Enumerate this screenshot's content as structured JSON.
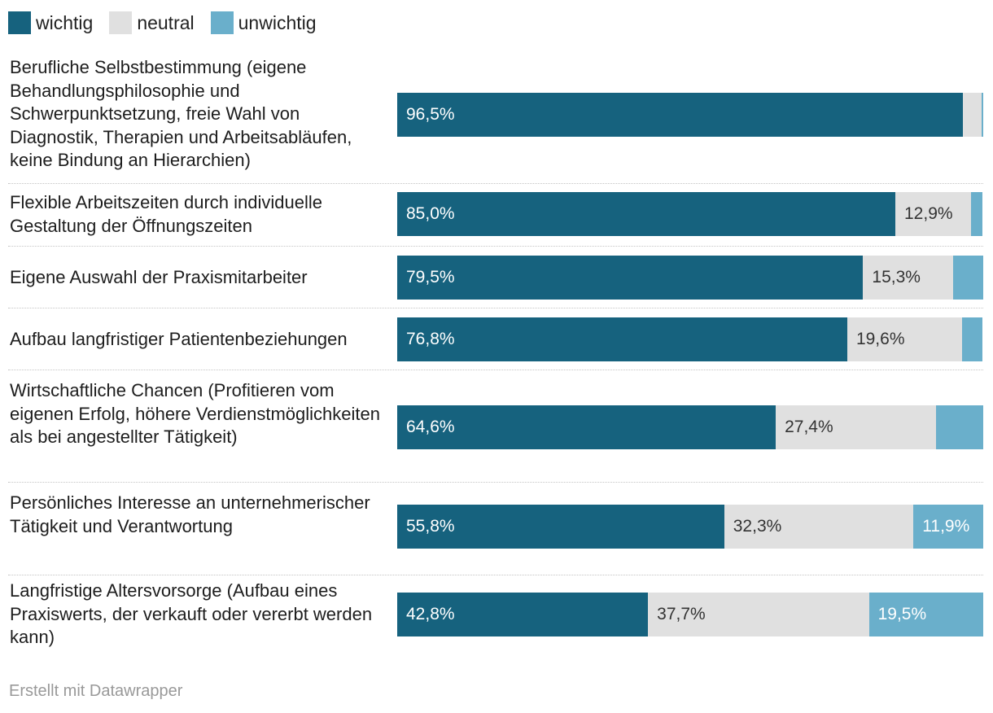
{
  "colors": {
    "wichtig": "#16627e",
    "neutral": "#e0e0e0",
    "unwichtig": "#6aafcb"
  },
  "legend": [
    {
      "key": "wichtig",
      "label": "wichtig"
    },
    {
      "key": "neutral",
      "label": "neutral"
    },
    {
      "key": "unwichtig",
      "label": "unwichtig"
    }
  ],
  "chart_data": {
    "type": "bar",
    "orientation": "horizontal",
    "stacked": true,
    "unit": "%",
    "xlim": [
      0,
      100
    ],
    "categories": [
      "Berufliche Selbstbestimmung (eigene Behandlungsphilosophie und Schwerpunktsetzung, freie Wahl von Diagnostik, Therapien und Arbeitsabläufen, keine Bindung an Hierarchien)",
      "Flexible Arbeitszeiten durch individuelle Gestaltung der Öffnungszeiten",
      "Eigene Auswahl der Praxismitarbeiter",
      "Aufbau langfristiger Patientenbeziehungen",
      "Wirtschaftliche Chancen (Profitieren vom eigenen Erfolg, höhere Verdienstmöglichkeiten als bei angestellter Tätigkeit)",
      "Persönliches Interesse an unternehmerischer Tätigkeit und Verantwortung",
      "Langfristige Altersvorsorge (Aufbau eines Praxiswerts, der verkauft oder vererbt werden kann)"
    ],
    "series": [
      {
        "name": "wichtig",
        "values": [
          96.5,
          85.0,
          79.5,
          76.8,
          64.6,
          55.8,
          42.8
        ],
        "labels": [
          "96,5%",
          "85,0%",
          "79,5%",
          "76,8%",
          "64,6%",
          "55,8%",
          "42,8%"
        ]
      },
      {
        "name": "neutral",
        "values": [
          3.2,
          12.9,
          15.3,
          19.6,
          27.4,
          32.3,
          37.7
        ],
        "labels": [
          "",
          "12,9%",
          "15,3%",
          "19,6%",
          "27,4%",
          "32,3%",
          "37,7%"
        ]
      },
      {
        "name": "unwichtig",
        "values": [
          0.3,
          1.9,
          5.2,
          3.5,
          8.0,
          11.9,
          19.5
        ],
        "labels": [
          "",
          "",
          "",
          "",
          "",
          "11,9%",
          "19,5%"
        ]
      }
    ]
  },
  "footer": "Erstellt mit Datawrapper"
}
